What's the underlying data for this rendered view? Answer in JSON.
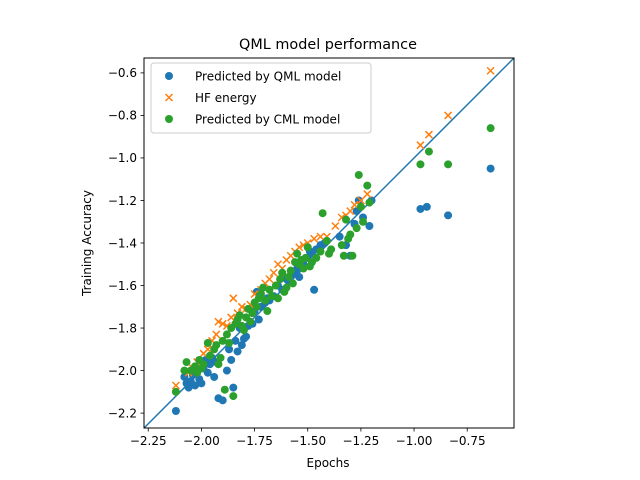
{
  "chart_data": {
    "type": "scatter",
    "title": "QML model performance",
    "xlabel": "Epochs",
    "ylabel": "Training Accuracy",
    "xlim": [
      -2.27,
      -0.53
    ],
    "ylim": [
      -2.27,
      -0.53
    ],
    "xticks": [
      -2.25,
      -2.0,
      -1.75,
      -1.5,
      -1.25,
      -1.0,
      -0.75
    ],
    "xtick_labels": [
      "−2.25",
      "−2.00",
      "−1.75",
      "−1.50",
      "−1.25",
      "−1.00",
      "−0.75"
    ],
    "yticks": [
      -2.2,
      -2.0,
      -1.8,
      -1.6,
      -1.4,
      -1.2,
      -1.0,
      -0.8,
      -0.6
    ],
    "ytick_labels": [
      "−2.2",
      "−2.0",
      "−1.8",
      "−1.6",
      "−1.4",
      "−1.2",
      "−1.0",
      "−0.8",
      "−0.6"
    ],
    "grid": false,
    "legend_position": "upper-left",
    "reference_line": {
      "x": [
        -2.27,
        -0.53
      ],
      "y": [
        -2.27,
        -0.53
      ],
      "color": "#1f77b4"
    },
    "series": [
      {
        "name": "Predicted by QML model",
        "marker": "circle",
        "color": "#1f77b4",
        "points": [
          [
            -2.12,
            -2.19
          ],
          [
            -2.08,
            -2.03
          ],
          [
            -2.07,
            -2.06
          ],
          [
            -2.06,
            -2.08
          ],
          [
            -2.05,
            -2.05
          ],
          [
            -2.04,
            -2.02
          ],
          [
            -2.03,
            -2.07
          ],
          [
            -2.02,
            -2.0
          ],
          [
            -2.01,
            -2.04
          ],
          [
            -2.0,
            -2.06
          ],
          [
            -1.99,
            -1.99
          ],
          [
            -1.98,
            -1.95
          ],
          [
            -1.97,
            -2.01
          ],
          [
            -1.96,
            -1.97
          ],
          [
            -1.95,
            -1.94
          ],
          [
            -1.94,
            -2.03
          ],
          [
            -1.93,
            -1.96
          ],
          [
            -1.92,
            -2.13
          ],
          [
            -1.9,
            -2.14
          ],
          [
            -1.88,
            -2.0
          ],
          [
            -1.87,
            -1.9
          ],
          [
            -1.86,
            -1.95
          ],
          [
            -1.85,
            -2.08
          ],
          [
            -1.84,
            -1.86
          ],
          [
            -1.83,
            -1.91
          ],
          [
            -1.82,
            -1.8
          ],
          [
            -1.81,
            -1.88
          ],
          [
            -1.8,
            -1.85
          ],
          [
            -1.79,
            -1.84
          ],
          [
            -1.78,
            -1.79
          ],
          [
            -1.76,
            -1.78
          ],
          [
            -1.75,
            -1.72
          ],
          [
            -1.74,
            -1.63
          ],
          [
            -1.73,
            -1.76
          ],
          [
            -1.72,
            -1.7
          ],
          [
            -1.7,
            -1.68
          ],
          [
            -1.69,
            -1.66
          ],
          [
            -1.68,
            -1.67
          ],
          [
            -1.66,
            -1.65
          ],
          [
            -1.64,
            -1.6
          ],
          [
            -1.62,
            -1.62
          ],
          [
            -1.6,
            -1.57
          ],
          [
            -1.59,
            -1.58
          ],
          [
            -1.58,
            -1.55
          ],
          [
            -1.56,
            -1.54
          ],
          [
            -1.55,
            -1.52
          ],
          [
            -1.54,
            -1.56
          ],
          [
            -1.52,
            -1.5
          ],
          [
            -1.5,
            -1.47
          ],
          [
            -1.49,
            -1.44
          ],
          [
            -1.48,
            -1.45
          ],
          [
            -1.46,
            -1.43
          ],
          [
            -1.47,
            -1.62
          ],
          [
            -1.44,
            -1.41
          ],
          [
            -1.42,
            -1.4
          ],
          [
            -1.35,
            -1.37
          ],
          [
            -1.32,
            -1.41
          ],
          [
            -1.3,
            -1.46
          ],
          [
            -1.28,
            -1.31
          ],
          [
            -1.27,
            -1.25
          ],
          [
            -1.26,
            -1.2
          ],
          [
            -1.24,
            -1.28
          ],
          [
            -1.21,
            -1.32
          ],
          [
            -1.2,
            -1.2
          ],
          [
            -0.97,
            -1.24
          ],
          [
            -0.94,
            -1.23
          ],
          [
            -0.84,
            -1.27
          ],
          [
            -0.64,
            -1.05
          ]
        ]
      },
      {
        "name": "HF energy",
        "marker": "x",
        "color": "#ff7f0e",
        "points": [
          [
            -2.12,
            -2.07
          ],
          [
            -2.06,
            -2.01
          ],
          [
            -2.04,
            -1.99
          ],
          [
            -2.02,
            -1.96
          ],
          [
            -1.99,
            -1.92
          ],
          [
            -1.97,
            -1.9
          ],
          [
            -1.95,
            -1.86
          ],
          [
            -1.93,
            -1.83
          ],
          [
            -1.92,
            -1.77
          ],
          [
            -1.9,
            -1.78
          ],
          [
            -1.88,
            -1.79
          ],
          [
            -1.86,
            -1.75
          ],
          [
            -1.85,
            -1.66
          ],
          [
            -1.83,
            -1.73
          ],
          [
            -1.81,
            -1.7
          ],
          [
            -1.79,
            -1.71
          ],
          [
            -1.77,
            -1.69
          ],
          [
            -1.75,
            -1.64
          ],
          [
            -1.72,
            -1.62
          ],
          [
            -1.7,
            -1.59
          ],
          [
            -1.68,
            -1.57
          ],
          [
            -1.66,
            -1.54
          ],
          [
            -1.64,
            -1.5
          ],
          [
            -1.62,
            -1.52
          ],
          [
            -1.6,
            -1.48
          ],
          [
            -1.58,
            -1.46
          ],
          [
            -1.56,
            -1.44
          ],
          [
            -1.54,
            -1.42
          ],
          [
            -1.52,
            -1.41
          ],
          [
            -1.5,
            -1.4
          ],
          [
            -1.47,
            -1.38
          ],
          [
            -1.44,
            -1.37
          ],
          [
            -1.41,
            -1.37
          ],
          [
            -1.37,
            -1.32
          ],
          [
            -1.34,
            -1.28
          ],
          [
            -1.32,
            -1.27
          ],
          [
            -1.3,
            -1.25
          ],
          [
            -1.28,
            -1.22
          ],
          [
            -1.25,
            -1.2
          ],
          [
            -1.22,
            -1.17
          ],
          [
            -0.97,
            -0.94
          ],
          [
            -0.93,
            -0.89
          ],
          [
            -0.84,
            -0.8
          ],
          [
            -0.64,
            -0.59
          ]
        ]
      },
      {
        "name": "Predicted by CML model",
        "marker": "circle",
        "color": "#2ca02c",
        "points": [
          [
            -2.12,
            -2.1
          ],
          [
            -2.08,
            -2.0
          ],
          [
            -2.07,
            -1.96
          ],
          [
            -2.05,
            -2.0
          ],
          [
            -2.03,
            -1.98
          ],
          [
            -2.02,
            -2.01
          ],
          [
            -2.01,
            -1.95
          ],
          [
            -2.0,
            -1.99
          ],
          [
            -1.99,
            -1.97
          ],
          [
            -1.97,
            -1.87
          ],
          [
            -1.96,
            -1.93
          ],
          [
            -1.94,
            -1.9
          ],
          [
            -1.93,
            -1.88
          ],
          [
            -1.92,
            -1.97
          ],
          [
            -1.91,
            -1.94
          ],
          [
            -1.9,
            -1.86
          ],
          [
            -1.89,
            -2.09
          ],
          [
            -1.88,
            -1.83
          ],
          [
            -1.87,
            -1.87
          ],
          [
            -1.86,
            -1.8
          ],
          [
            -1.85,
            -2.12
          ],
          [
            -1.84,
            -1.78
          ],
          [
            -1.83,
            -1.76
          ],
          [
            -1.82,
            -1.74
          ],
          [
            -1.81,
            -1.79
          ],
          [
            -1.8,
            -1.81
          ],
          [
            -1.79,
            -1.75
          ],
          [
            -1.78,
            -1.71
          ],
          [
            -1.77,
            -1.77
          ],
          [
            -1.76,
            -1.73
          ],
          [
            -1.75,
            -1.68
          ],
          [
            -1.74,
            -1.7
          ],
          [
            -1.73,
            -1.66
          ],
          [
            -1.72,
            -1.64
          ],
          [
            -1.71,
            -1.61
          ],
          [
            -1.7,
            -1.67
          ],
          [
            -1.69,
            -1.72
          ],
          [
            -1.68,
            -1.62
          ],
          [
            -1.67,
            -1.65
          ],
          [
            -1.65,
            -1.6
          ],
          [
            -1.64,
            -1.66
          ],
          [
            -1.63,
            -1.57
          ],
          [
            -1.62,
            -1.54
          ],
          [
            -1.61,
            -1.63
          ],
          [
            -1.6,
            -1.61
          ],
          [
            -1.59,
            -1.56
          ],
          [
            -1.58,
            -1.53
          ],
          [
            -1.57,
            -1.59
          ],
          [
            -1.56,
            -1.49
          ],
          [
            -1.55,
            -1.45
          ],
          [
            -1.54,
            -1.5
          ],
          [
            -1.53,
            -1.48
          ],
          [
            -1.52,
            -1.52
          ],
          [
            -1.51,
            -1.47
          ],
          [
            -1.5,
            -1.42
          ],
          [
            -1.49,
            -1.51
          ],
          [
            -1.48,
            -1.49
          ],
          [
            -1.46,
            -1.47
          ],
          [
            -1.44,
            -1.44
          ],
          [
            -1.43,
            -1.26
          ],
          [
            -1.41,
            -1.39
          ],
          [
            -1.4,
            -1.45
          ],
          [
            -1.39,
            -1.43
          ],
          [
            -1.34,
            -1.41
          ],
          [
            -1.33,
            -1.46
          ],
          [
            -1.32,
            -1.29
          ],
          [
            -1.31,
            -1.38
          ],
          [
            -1.3,
            -1.36
          ],
          [
            -1.29,
            -1.46
          ],
          [
            -1.27,
            -1.33
          ],
          [
            -1.26,
            -1.08
          ],
          [
            -1.25,
            -1.23
          ],
          [
            -1.24,
            -1.3
          ],
          [
            -1.22,
            -1.13
          ],
          [
            -1.21,
            -1.21
          ],
          [
            -0.97,
            -1.03
          ],
          [
            -0.93,
            -0.97
          ],
          [
            -0.84,
            -1.03
          ],
          [
            -0.64,
            -0.86
          ]
        ]
      }
    ]
  }
}
